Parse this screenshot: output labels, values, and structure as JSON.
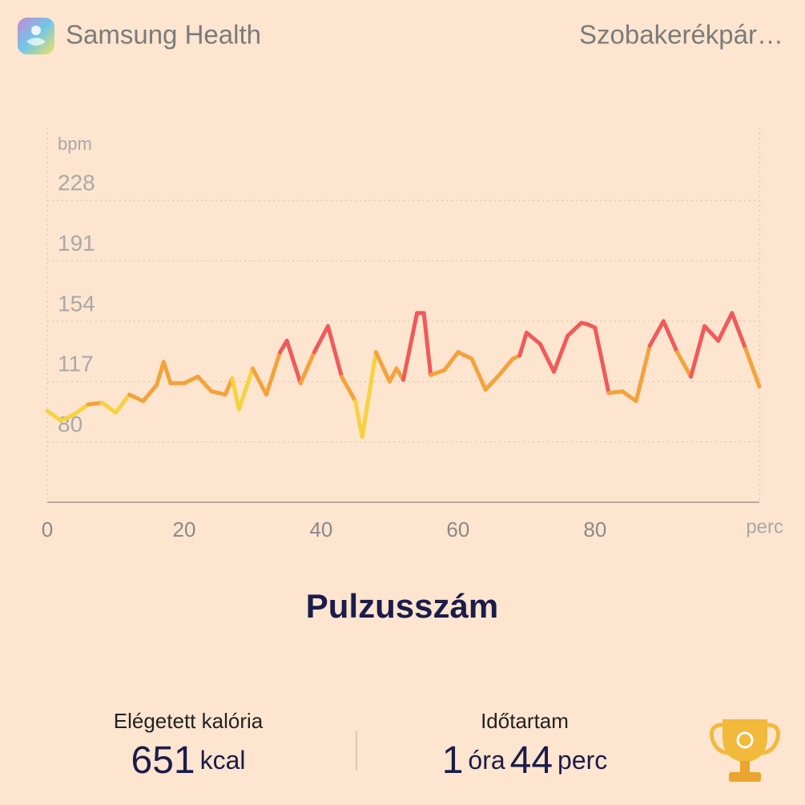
{
  "header": {
    "app_name": "Samsung Health",
    "activity": "Szobakerékpár…"
  },
  "chart_data": {
    "type": "line",
    "title": "Pulzusszám",
    "y_label": "bpm",
    "x_label": "perc",
    "x": [
      0,
      2,
      4,
      6,
      8,
      10,
      12,
      14,
      16,
      17,
      18,
      20,
      22,
      24,
      26,
      27,
      28,
      30,
      32,
      34,
      35,
      37,
      39,
      41,
      43,
      45,
      46,
      48,
      50,
      51,
      52,
      54,
      55,
      56,
      58,
      60,
      62,
      64,
      66,
      68,
      69,
      70,
      72,
      74,
      76,
      78,
      79,
      80,
      82,
      84,
      86,
      88,
      90,
      92,
      94,
      96,
      98,
      100,
      102,
      104
    ],
    "series": [
      {
        "color": "#f4a23c",
        "values": [
          99,
          93,
          97,
          103,
          104,
          98,
          109,
          105,
          115,
          129,
          116,
          116,
          120,
          111,
          109,
          119,
          100,
          125,
          109,
          135,
          142,
          116,
          135,
          151,
          120,
          105,
          83,
          135,
          117,
          125,
          118,
          159,
          159,
          121,
          124,
          135,
          131,
          112,
          121,
          131,
          133,
          147,
          140,
          123,
          145,
          153,
          152,
          150,
          110,
          111,
          105,
          139,
          154,
          135,
          120,
          151,
          142,
          159,
          137,
          114
        ],
        "colors": [
          "#f7d23e",
          "#f7d23e",
          "#f7d23e",
          "#f4a23c",
          "#f4a23c",
          "#f7d23e",
          "#f4a23c",
          "#f4a23c",
          "#f4a23c",
          "#f4a23c",
          "#f4a23c",
          "#f4a23c",
          "#f4a23c",
          "#f4a23c",
          "#f4a23c",
          "#f4a23c",
          "#f7d23e",
          "#f4a23c",
          "#f4a23c",
          "#f4a23c",
          "#ef5a5a",
          "#f4a23c",
          "#f4a23c",
          "#ef5a5a",
          "#f4a23c",
          "#f4a23c",
          "#f7d23e",
          "#f4a23c",
          "#f4a23c",
          "#f4a23c",
          "#f4a23c",
          "#ef5a5a",
          "#ef5a5a",
          "#f4a23c",
          "#f4a23c",
          "#f4a23c",
          "#f4a23c",
          "#f4a23c",
          "#f4a23c",
          "#f4a23c",
          "#f4a23c",
          "#ef5a5a",
          "#ef5a5a",
          "#f4a23c",
          "#ef5a5a",
          "#ef5a5a",
          "#ef5a5a",
          "#ef5a5a",
          "#f4a23c",
          "#f4a23c",
          "#f4a23c",
          "#f4a23c",
          "#ef5a5a",
          "#f4a23c",
          "#f4a23c",
          "#ef5a5a",
          "#ef5a5a",
          "#ef5a5a",
          "#f4a23c",
          "#f4a23c"
        ]
      }
    ],
    "xlim": [
      0,
      104
    ],
    "xticks": [
      0,
      20,
      40,
      60,
      80
    ],
    "ylim": [
      43,
      265
    ],
    "yticks": [
      80,
      117,
      154,
      191,
      228
    ],
    "grid": true
  },
  "stats": {
    "calories": {
      "label": "Elégetett kalória",
      "value": 651,
      "unit": "kcal"
    },
    "duration": {
      "label": "Időtartam",
      "hours": 1,
      "hours_unit": "óra",
      "minutes": 44,
      "minutes_unit": "perc"
    }
  }
}
